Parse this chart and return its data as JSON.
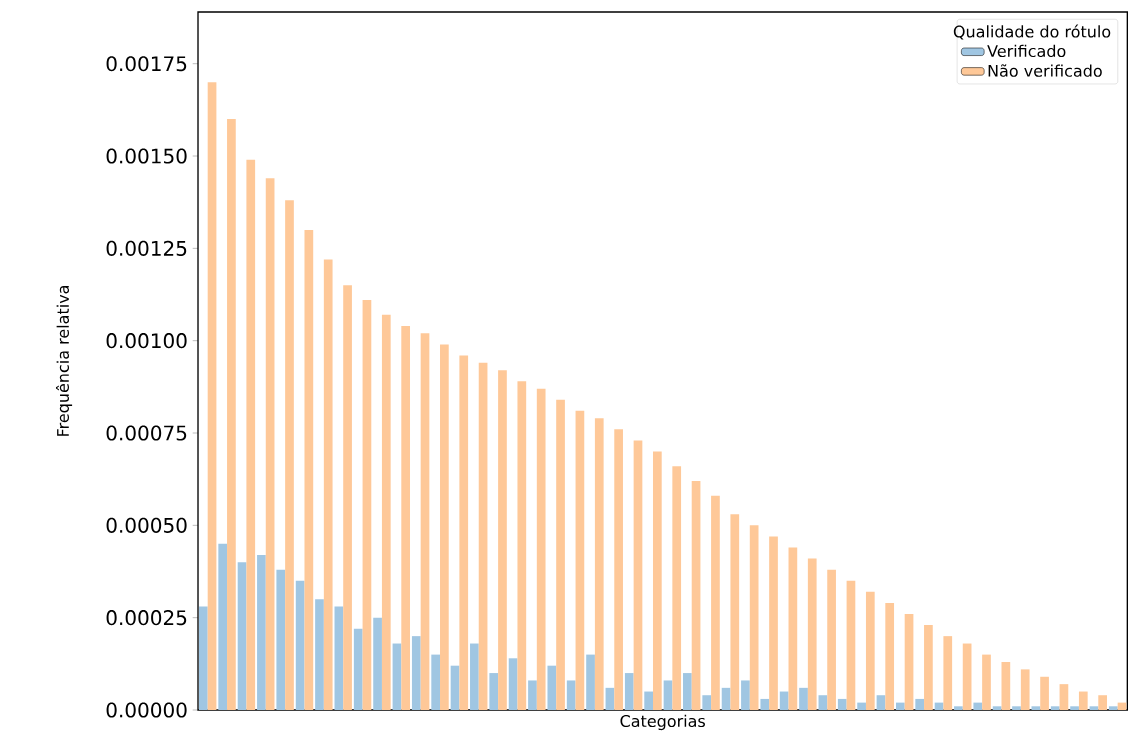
{
  "chart_data": {
    "type": "bar",
    "xlabel": "Categorias",
    "ylabel": "Frequência relativa",
    "legend_title": "Qualidade do rótulo",
    "legend": "top right",
    "grid": false,
    "categories": [
      null,
      null,
      null,
      null,
      null,
      null,
      null,
      null,
      null,
      null,
      null,
      null,
      null,
      null,
      null,
      null,
      null,
      null,
      null,
      null,
      null,
      null,
      null,
      null,
      null,
      null,
      null,
      null,
      null,
      null,
      null,
      null,
      null,
      null,
      null,
      null,
      null,
      null,
      null,
      null,
      null,
      null,
      null,
      null,
      null,
      null,
      null,
      null
    ],
    "ylim": [
      0,
      0.00189
    ],
    "yticks": [
      {
        "value": 0,
        "label": "0.00000"
      },
      {
        "value": 0.00025,
        "label": "0.00025"
      },
      {
        "value": 0.0005,
        "label": "0.00050"
      },
      {
        "value": 0.00075,
        "label": "0.00075"
      },
      {
        "value": 0.001,
        "label": "0.00100"
      },
      {
        "value": 0.00125,
        "label": "0.00125"
      },
      {
        "value": 0.0015,
        "label": "0.00150"
      },
      {
        "value": 0.00175,
        "label": "0.00175"
      }
    ],
    "series": [
      {
        "name": "Não verificado",
        "color": "#fec898",
        "values": [
          0.0017,
          0.0016,
          0.00149,
          0.00144,
          0.00138,
          0.0013,
          0.00122,
          0.00115,
          0.00111,
          0.00107,
          0.00104,
          0.00102,
          0.00099,
          0.00096,
          0.00094,
          0.00092,
          0.00089,
          0.00087,
          0.00084,
          0.00081,
          0.00079,
          0.00076,
          0.00073,
          0.0007,
          0.00066,
          0.00062,
          0.00058,
          0.00053,
          0.0005,
          0.00047,
          0.00044,
          0.00041,
          0.00038,
          0.00035,
          0.00032,
          0.00029,
          0.00026,
          0.00023,
          0.0002,
          0.00018,
          0.00015,
          0.00013,
          0.00011,
          9e-05,
          7e-05,
          5e-05,
          4e-05,
          2e-05
        ]
      },
      {
        "name": "Verificado",
        "color": "#a0c6e2",
        "values": [
          0.00028,
          0.00045,
          0.0004,
          0.00042,
          0.00038,
          0.00035,
          0.0003,
          0.00028,
          0.00022,
          0.00025,
          0.00018,
          0.0002,
          0.00015,
          0.00012,
          0.00018,
          0.0001,
          0.00014,
          8e-05,
          0.00012,
          8e-05,
          0.00015,
          6e-05,
          0.0001,
          5e-05,
          8e-05,
          0.0001,
          4e-05,
          6e-05,
          8e-05,
          3e-05,
          5e-05,
          6e-05,
          4e-05,
          3e-05,
          2e-05,
          4e-05,
          2e-05,
          3e-05,
          2e-05,
          1e-05,
          2e-05,
          1e-05,
          1e-05,
          1e-05,
          1e-05,
          1e-05,
          1e-05,
          1e-05
        ]
      }
    ]
  }
}
